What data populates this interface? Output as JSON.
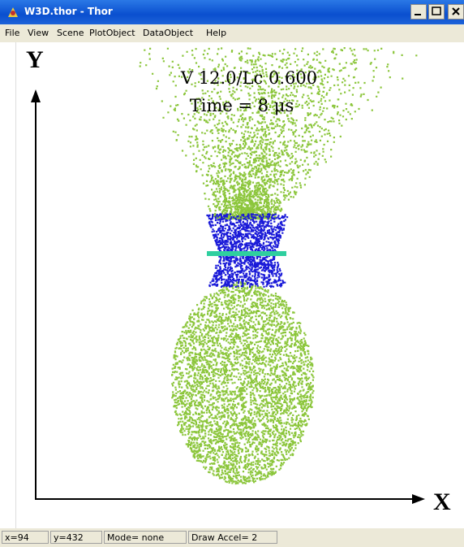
{
  "window": {
    "title": "W3D.thor - Thor"
  },
  "menu": [
    "File",
    "View",
    "Scene",
    "PlotObject",
    "DataObject",
    "Help"
  ],
  "canvas": {
    "y_axis_label": "Y",
    "x_axis_label": "X",
    "caption_line_1": "V 12.0/Lc 0.600",
    "caption_line_2": "Time = 8 μs"
  },
  "status_bar": [
    "x=94",
    "y=432",
    "Mode= none",
    "Draw Accel= 2"
  ]
}
